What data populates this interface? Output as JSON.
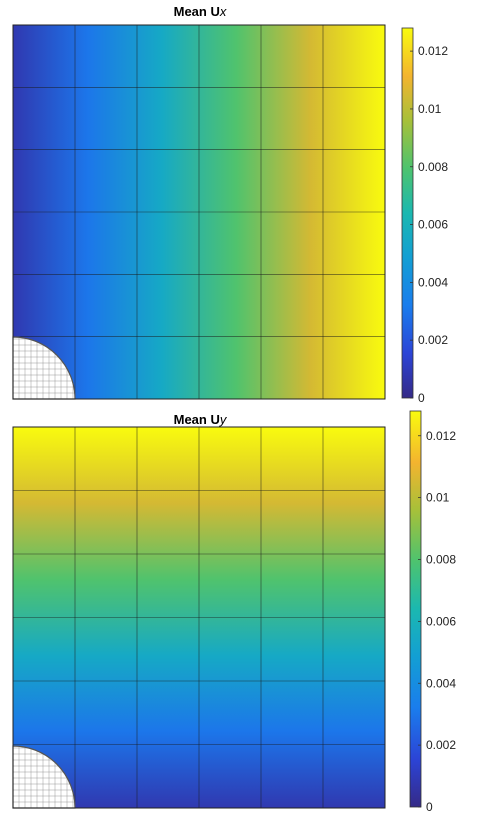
{
  "chart_data": [
    {
      "type": "heatmap",
      "title_main": "Mean U",
      "title_sub": "x",
      "colormap": "parula",
      "colorbar": {
        "ticks": [
          "0",
          "0.002",
          "0.004",
          "0.006",
          "0.008",
          "0.01",
          "0.012"
        ],
        "range": [
          0,
          0.0128
        ]
      },
      "field_gradient": "left-to-right",
      "x": [
        0.0,
        0.2,
        0.4,
        0.6,
        0.8,
        1.0
      ],
      "values": [
        0.0008,
        0.003,
        0.0055,
        0.008,
        0.0105,
        0.0128
      ],
      "mesh": {
        "cols": 6,
        "rows": 6,
        "refined_corner": "bottom-left"
      }
    },
    {
      "type": "heatmap",
      "title_main": "Mean U",
      "title_sub": "y",
      "colormap": "parula",
      "colorbar": {
        "ticks": [
          "0",
          "0.002",
          "0.004",
          "0.006",
          "0.008",
          "0.01",
          "0.012"
        ],
        "range": [
          0,
          0.0128
        ]
      },
      "field_gradient": "bottom-to-top",
      "y": [
        0.0,
        0.2,
        0.4,
        0.6,
        0.8,
        1.0
      ],
      "values": [
        0.0008,
        0.003,
        0.0055,
        0.008,
        0.0105,
        0.0128
      ],
      "mesh": {
        "cols": 6,
        "rows": 6,
        "refined_corner": "bottom-left"
      }
    }
  ]
}
